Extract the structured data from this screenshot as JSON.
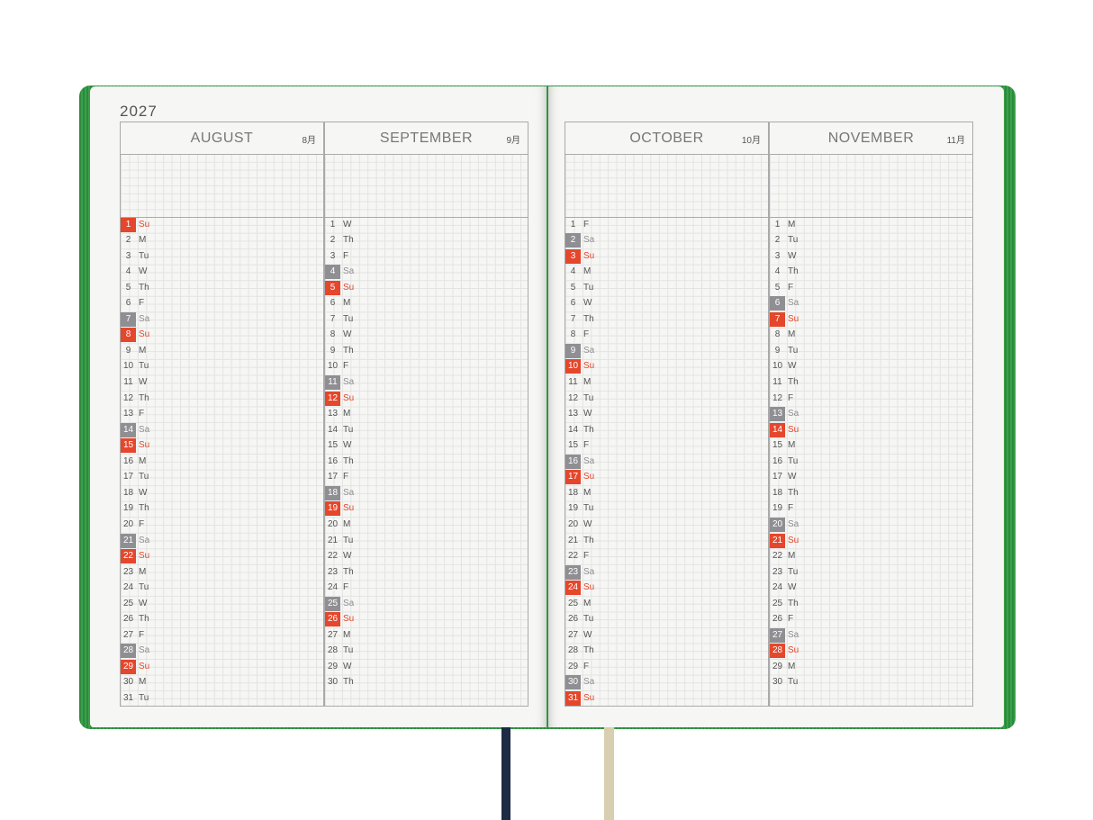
{
  "year": "2027",
  "weekend_colors": {
    "Sa": "#8f8f93",
    "Su": "#e4472c"
  },
  "months": [
    {
      "name": "AUGUST",
      "label": "8月",
      "days": [
        [
          1,
          "Su"
        ],
        [
          2,
          "M"
        ],
        [
          3,
          "Tu"
        ],
        [
          4,
          "W"
        ],
        [
          5,
          "Th"
        ],
        [
          6,
          "F"
        ],
        [
          7,
          "Sa"
        ],
        [
          8,
          "Su"
        ],
        [
          9,
          "M"
        ],
        [
          10,
          "Tu"
        ],
        [
          11,
          "W"
        ],
        [
          12,
          "Th"
        ],
        [
          13,
          "F"
        ],
        [
          14,
          "Sa"
        ],
        [
          15,
          "Su"
        ],
        [
          16,
          "M"
        ],
        [
          17,
          "Tu"
        ],
        [
          18,
          "W"
        ],
        [
          19,
          "Th"
        ],
        [
          20,
          "F"
        ],
        [
          21,
          "Sa"
        ],
        [
          22,
          "Su"
        ],
        [
          23,
          "M"
        ],
        [
          24,
          "Tu"
        ],
        [
          25,
          "W"
        ],
        [
          26,
          "Th"
        ],
        [
          27,
          "F"
        ],
        [
          28,
          "Sa"
        ],
        [
          29,
          "Su"
        ],
        [
          30,
          "M"
        ],
        [
          31,
          "Tu"
        ]
      ]
    },
    {
      "name": "SEPTEMBER",
      "label": "9月",
      "days": [
        [
          1,
          "W"
        ],
        [
          2,
          "Th"
        ],
        [
          3,
          "F"
        ],
        [
          4,
          "Sa"
        ],
        [
          5,
          "Su"
        ],
        [
          6,
          "M"
        ],
        [
          7,
          "Tu"
        ],
        [
          8,
          "W"
        ],
        [
          9,
          "Th"
        ],
        [
          10,
          "F"
        ],
        [
          11,
          "Sa"
        ],
        [
          12,
          "Su"
        ],
        [
          13,
          "M"
        ],
        [
          14,
          "Tu"
        ],
        [
          15,
          "W"
        ],
        [
          16,
          "Th"
        ],
        [
          17,
          "F"
        ],
        [
          18,
          "Sa"
        ],
        [
          19,
          "Su"
        ],
        [
          20,
          "M"
        ],
        [
          21,
          "Tu"
        ],
        [
          22,
          "W"
        ],
        [
          23,
          "Th"
        ],
        [
          24,
          "F"
        ],
        [
          25,
          "Sa"
        ],
        [
          26,
          "Su"
        ],
        [
          27,
          "M"
        ],
        [
          28,
          "Tu"
        ],
        [
          29,
          "W"
        ],
        [
          30,
          "Th"
        ]
      ]
    },
    {
      "name": "OCTOBER",
      "label": "10月",
      "days": [
        [
          1,
          "F"
        ],
        [
          2,
          "Sa"
        ],
        [
          3,
          "Su"
        ],
        [
          4,
          "M"
        ],
        [
          5,
          "Tu"
        ],
        [
          6,
          "W"
        ],
        [
          7,
          "Th"
        ],
        [
          8,
          "F"
        ],
        [
          9,
          "Sa"
        ],
        [
          10,
          "Su"
        ],
        [
          11,
          "M"
        ],
        [
          12,
          "Tu"
        ],
        [
          13,
          "W"
        ],
        [
          14,
          "Th"
        ],
        [
          15,
          "F"
        ],
        [
          16,
          "Sa"
        ],
        [
          17,
          "Su"
        ],
        [
          18,
          "M"
        ],
        [
          19,
          "Tu"
        ],
        [
          20,
          "W"
        ],
        [
          21,
          "Th"
        ],
        [
          22,
          "F"
        ],
        [
          23,
          "Sa"
        ],
        [
          24,
          "Su"
        ],
        [
          25,
          "M"
        ],
        [
          26,
          "Tu"
        ],
        [
          27,
          "W"
        ],
        [
          28,
          "Th"
        ],
        [
          29,
          "F"
        ],
        [
          30,
          "Sa"
        ],
        [
          31,
          "Su"
        ]
      ]
    },
    {
      "name": "NOVEMBER",
      "label": "11月",
      "days": [
        [
          1,
          "M"
        ],
        [
          2,
          "Tu"
        ],
        [
          3,
          "W"
        ],
        [
          4,
          "Th"
        ],
        [
          5,
          "F"
        ],
        [
          6,
          "Sa"
        ],
        [
          7,
          "Su"
        ],
        [
          8,
          "M"
        ],
        [
          9,
          "Tu"
        ],
        [
          10,
          "W"
        ],
        [
          11,
          "Th"
        ],
        [
          12,
          "F"
        ],
        [
          13,
          "Sa"
        ],
        [
          14,
          "Su"
        ],
        [
          15,
          "M"
        ],
        [
          16,
          "Tu"
        ],
        [
          17,
          "W"
        ],
        [
          18,
          "Th"
        ],
        [
          19,
          "F"
        ],
        [
          20,
          "Sa"
        ],
        [
          21,
          "Su"
        ],
        [
          22,
          "M"
        ],
        [
          23,
          "Tu"
        ],
        [
          24,
          "W"
        ],
        [
          25,
          "Th"
        ],
        [
          26,
          "F"
        ],
        [
          27,
          "Sa"
        ],
        [
          28,
          "Su"
        ],
        [
          29,
          "M"
        ],
        [
          30,
          "Tu"
        ]
      ]
    }
  ]
}
